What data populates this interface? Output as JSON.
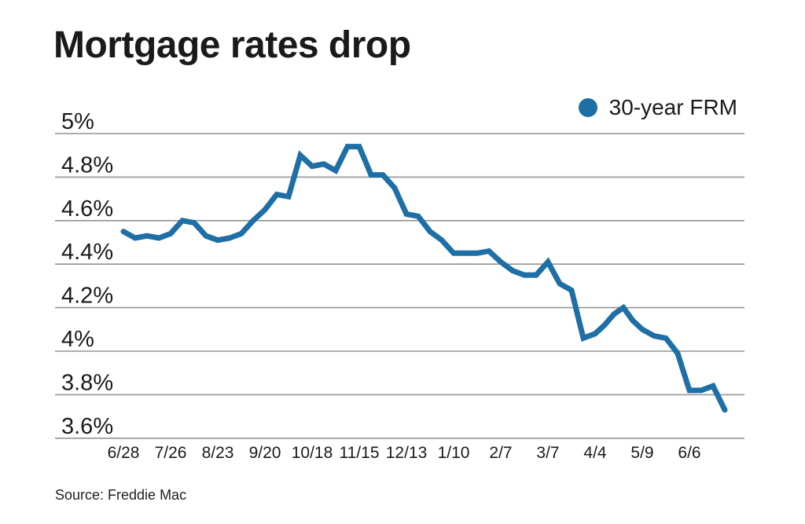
{
  "page": {
    "title": "Mortgage rates drop",
    "source": "Source: Freddie Mac"
  },
  "legend": {
    "label": "30-year FRM",
    "dot_icon": "filled-circle"
  },
  "colors": {
    "line": "#1E6FA5",
    "grid": "#949494",
    "text": "#1a1a1a",
    "background": "#ffffff"
  },
  "chart_data": {
    "type": "line",
    "title": "Mortgage rates drop",
    "series": [
      {
        "name": "30-year FRM",
        "x": [
          "6/28",
          "7/5",
          "7/12",
          "7/19",
          "7/26",
          "8/2",
          "8/9",
          "8/16",
          "8/23",
          "8/30",
          "9/6",
          "9/13",
          "9/20",
          "9/27",
          "10/4",
          "10/11",
          "10/18",
          "10/25",
          "11/1",
          "11/8",
          "11/15",
          "11/21",
          "11/29",
          "12/6",
          "12/13",
          "12/20",
          "12/27",
          "1/3",
          "1/10",
          "1/17",
          "1/24",
          "1/31",
          "2/7",
          "2/14",
          "2/21",
          "2/28",
          "3/7",
          "3/14",
          "3/21",
          "3/28",
          "4/4",
          "4/11",
          "4/18",
          "4/25",
          "5/2",
          "5/9",
          "5/16",
          "5/23",
          "5/30",
          "6/6",
          "6/13",
          "6/20",
          "6/27"
        ],
        "values": [
          4.55,
          4.52,
          4.53,
          4.52,
          4.54,
          4.6,
          4.59,
          4.53,
          4.51,
          4.52,
          4.54,
          4.6,
          4.65,
          4.72,
          4.71,
          4.9,
          4.85,
          4.86,
          4.83,
          4.94,
          4.94,
          4.81,
          4.81,
          4.75,
          4.63,
          4.62,
          4.55,
          4.51,
          4.45,
          4.45,
          4.45,
          4.46,
          4.41,
          4.37,
          4.35,
          4.35,
          4.41,
          4.31,
          4.28,
          4.06,
          4.08,
          4.12,
          4.17,
          4.2,
          4.14,
          4.1,
          4.07,
          4.06,
          3.99,
          3.82,
          3.82,
          3.84,
          3.73
        ]
      }
    ],
    "x_tick_labels": [
      "6/28",
      "7/26",
      "8/23",
      "9/20",
      "10/18",
      "11/15",
      "12/13",
      "1/10",
      "2/7",
      "3/7",
      "4/4",
      "5/9",
      "6/6"
    ],
    "x_tick_indices": [
      0,
      4,
      8,
      12,
      16,
      20,
      24,
      28,
      32,
      36,
      40,
      45,
      49
    ],
    "y_ticks": [
      {
        "label": "5%",
        "value": 5.0
      },
      {
        "label": "4.8%",
        "value": 4.8
      },
      {
        "label": "4.6%",
        "value": 4.6
      },
      {
        "label": "4.4%",
        "value": 4.4
      },
      {
        "label": "4.2%",
        "value": 4.2
      },
      {
        "label": "4%",
        "value": 4.0
      },
      {
        "label": "3.8%",
        "value": 3.8
      },
      {
        "label": "3.6%",
        "value": 3.6
      }
    ],
    "ylim": [
      3.6,
      5.0
    ],
    "xlabel": "",
    "ylabel": "",
    "grid": "horizontal",
    "legend_position": "top-right",
    "legend_entries": [
      "30-year FRM"
    ],
    "source": "Source: Freddie Mac"
  }
}
